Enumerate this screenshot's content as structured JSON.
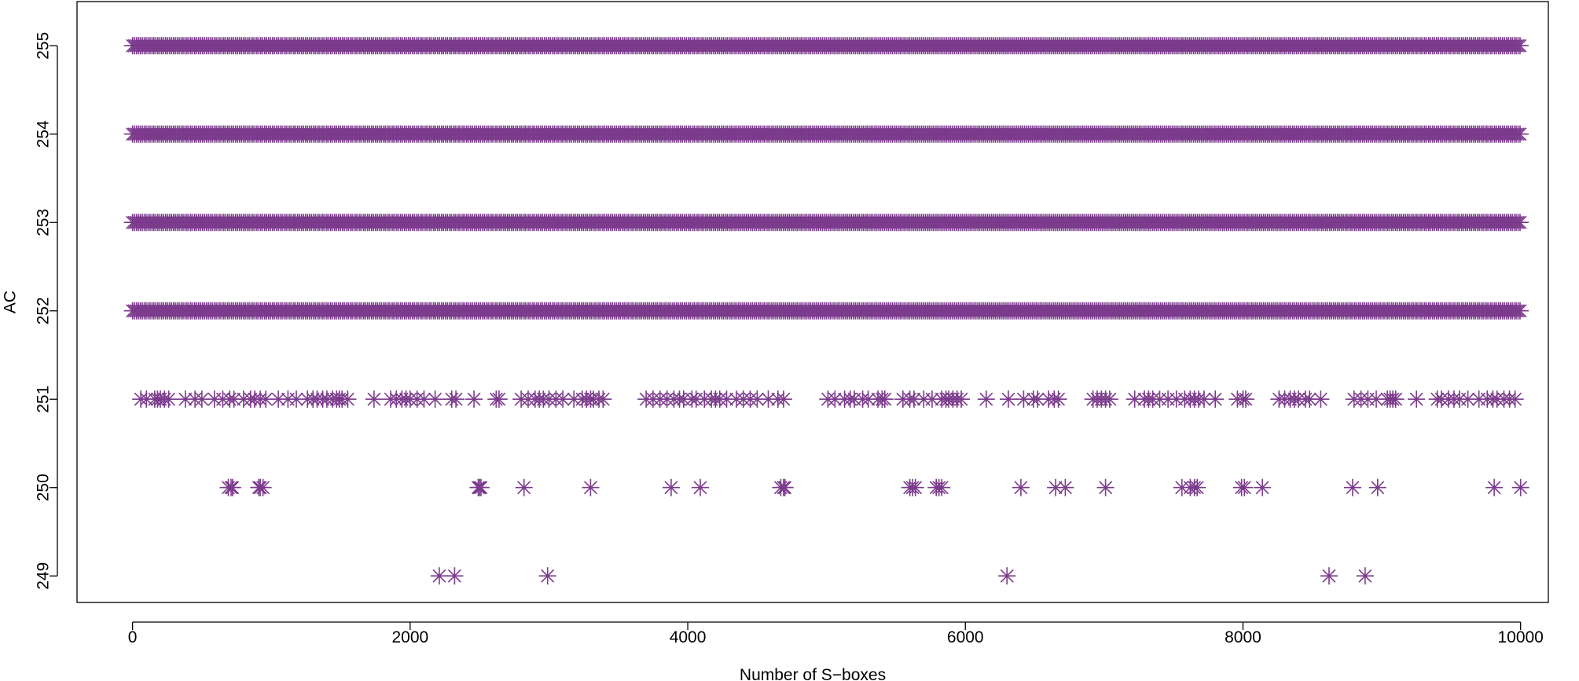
{
  "chart_data": {
    "type": "scatter",
    "xlabel": "Number of S−boxes",
    "ylabel": "AC",
    "xlim": [
      -400,
      10200
    ],
    "ylim": [
      248.7,
      255.5
    ],
    "x_ticks": [
      0,
      2000,
      4000,
      6000,
      8000,
      10000
    ],
    "x_tick_labels": [
      "0",
      "2000",
      "4000",
      "6000",
      "8000",
      "10000"
    ],
    "y_ticks": [
      249,
      250,
      251,
      252,
      253,
      254,
      255
    ],
    "y_tick_labels": [
      "249",
      "250",
      "251",
      "252",
      "253",
      "254",
      "255"
    ],
    "marker": "asterisk",
    "color": "#7B3A8C",
    "grid": false,
    "legend": "none",
    "series": [
      {
        "values": [
          {
            "y": 249,
            "x": [
              2210,
              2320,
              2990,
              6300,
              8620,
              8880
            ]
          },
          {
            "y": 250,
            "x": [
              690,
              710,
              720,
              910,
              920,
              940,
              2490,
              2500,
              2510,
              2820,
              3300,
              3880,
              4090,
              4670,
              4690,
              4700,
              5600,
              5620,
              5640,
              5790,
              5810,
              5830,
              6400,
              6650,
              6720,
              7010,
              7560,
              7620,
              7650,
              7670,
              7990,
              8010,
              8140,
              8790,
              8970,
              9810,
              10000
            ]
          },
          {
            "y": 251,
            "x": [
              60,
              100,
              160,
              180,
              200,
              230,
              260,
              380,
              450,
              500,
              590,
              650,
              700,
              730,
              800,
              850,
              880,
              920,
              960,
              1050,
              1120,
              1180,
              1260,
              1300,
              1330,
              1370,
              1400,
              1440,
              1470,
              1490,
              1510,
              1550,
              1740,
              1860,
              1900,
              1940,
              1970,
              2000,
              2050,
              2100,
              2180,
              2300,
              2330,
              2460,
              2620,
              2640,
              2800,
              2850,
              2900,
              2930,
              2960,
              3000,
              3050,
              3100,
              3180,
              3240,
              3270,
              3300,
              3320,
              3360,
              3390,
              3700,
              3750,
              3800,
              3850,
              3900,
              3940,
              3970,
              4030,
              4060,
              4120,
              4170,
              4200,
              4230,
              4280,
              4350,
              4400,
              4450,
              4500,
              4580,
              4650,
              4690,
              5010,
              5060,
              5130,
              5170,
              5200,
              5260,
              5300,
              5370,
              5400,
              5420,
              5550,
              5600,
              5630,
              5700,
              5760,
              5830,
              5860,
              5880,
              5910,
              5940,
              5970,
              6150,
              6310,
              6420,
              6490,
              6520,
              6600,
              6640,
              6670,
              6920,
              6950,
              6980,
              7010,
              7040,
              7220,
              7290,
              7320,
              7350,
              7400,
              7460,
              7520,
              7580,
              7620,
              7650,
              7680,
              7720,
              7800,
              7960,
              8000,
              8020,
              8260,
              8300,
              8340,
              8370,
              8400,
              8450,
              8480,
              8560,
              8800,
              8850,
              8900,
              8960,
              9040,
              9060,
              9080,
              9100,
              9250,
              9400,
              9430,
              9480,
              9520,
              9560,
              9620,
              9700,
              9760,
              9800,
              9830,
              9880,
              9920,
              9960
            ]
          }
        ]
      }
    ],
    "dense_rows": [
      {
        "y": 252,
        "x_start": 0,
        "x_end": 10000
      },
      {
        "y": 253,
        "x_start": 0,
        "x_end": 10000
      },
      {
        "y": 254,
        "x_start": 0,
        "x_end": 10000
      },
      {
        "y": 255,
        "x_start": 0,
        "x_end": 10000
      }
    ]
  }
}
